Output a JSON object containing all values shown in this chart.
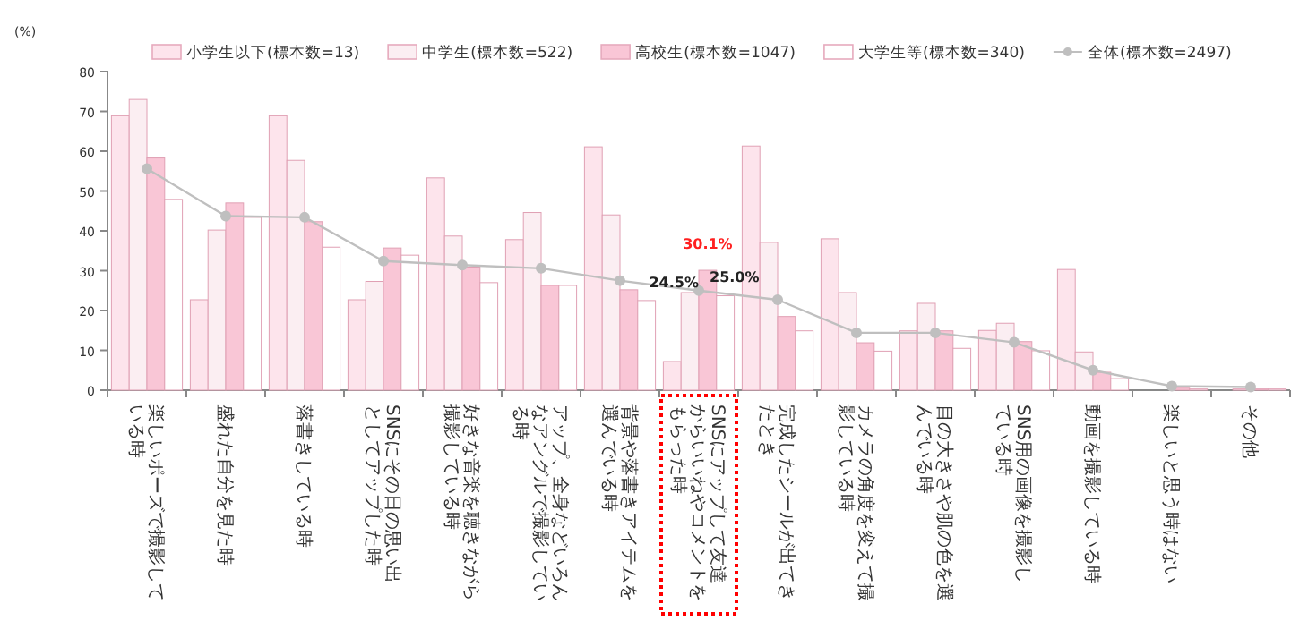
{
  "chart_data": {
    "type": "bar",
    "ylabel": "(%)",
    "ylim": [
      0,
      80
    ],
    "yticks": [
      0,
      10,
      20,
      30,
      40,
      50,
      60,
      70,
      80
    ],
    "grid": false,
    "legend": "top",
    "categories": [
      "楽しいポーズで撮影している時",
      "盛れた自分を見た時",
      "落書きしている時",
      "SNSにその日の思い出としてアップした時",
      "好きな音楽を聴きながら撮影している時",
      "アップ、全身などいろんなアングルで撮影している時",
      "背景や落書きアイテムを選んでいる時",
      "SNSにアップして友達からいいねやコメントをもらった時",
      "完成したシールが出てきたとき",
      "カメラの角度を変えて撮影している時",
      "目の大きさや肌の色を選んでいる時",
      "SNS用の画像を撮影している時",
      "動画を撮影している時",
      "楽しいと思う時はない",
      "その他"
    ],
    "series": [
      {
        "name": "小学生以下(標本数=13)",
        "color": "#fde4ec",
        "values": [
          68.9,
          22.7,
          68.9,
          22.7,
          53.3,
          37.8,
          61.1,
          7.2,
          61.3,
          38.0,
          14.9,
          15.0,
          30.3,
          0,
          0
        ]
      },
      {
        "name": "中学生(標本数=522)",
        "color": "#fbeef2",
        "values": [
          73.0,
          40.2,
          57.7,
          27.3,
          38.7,
          44.6,
          44.0,
          24.5,
          37.1,
          24.5,
          21.8,
          16.8,
          9.6,
          null,
          0.3
        ],
        "value_labels": [
          null,
          null,
          null,
          null,
          null,
          null,
          null,
          "24.5%",
          null,
          null,
          null,
          null,
          null,
          null,
          null
        ]
      },
      {
        "name": "高校生(標本数=1047)",
        "color": "#f9c6d6",
        "values": [
          58.3,
          47.0,
          42.3,
          35.7,
          30.9,
          26.3,
          25.2,
          30.1,
          18.5,
          11.9,
          14.9,
          12.2,
          4.5,
          0.5,
          0.3
        ],
        "value_labels": [
          null,
          null,
          null,
          null,
          null,
          null,
          null,
          "30.1%",
          null,
          null,
          null,
          null,
          null,
          null,
          null
        ]
      },
      {
        "name": "大学生等(標本数=340)",
        "color": "#ffffff",
        "values": [
          47.9,
          43.4,
          35.9,
          33.9,
          27.0,
          26.3,
          22.5,
          23.7,
          14.9,
          9.8,
          10.5,
          9.9,
          2.9,
          0.3,
          0.3
        ]
      },
      {
        "name": "全体(標本数=2497)",
        "type": "line",
        "marker": "circle",
        "color": "#bfbfbf",
        "values": [
          55.6,
          43.7,
          43.4,
          32.4,
          31.4,
          30.6,
          27.5,
          25.0,
          22.7,
          14.4,
          14.4,
          12.0,
          5.0,
          1.0,
          0.8
        ],
        "value_labels": [
          null,
          null,
          null,
          null,
          null,
          null,
          null,
          "25.0%",
          null,
          null,
          null,
          null,
          null,
          null,
          null
        ]
      }
    ]
  }
}
